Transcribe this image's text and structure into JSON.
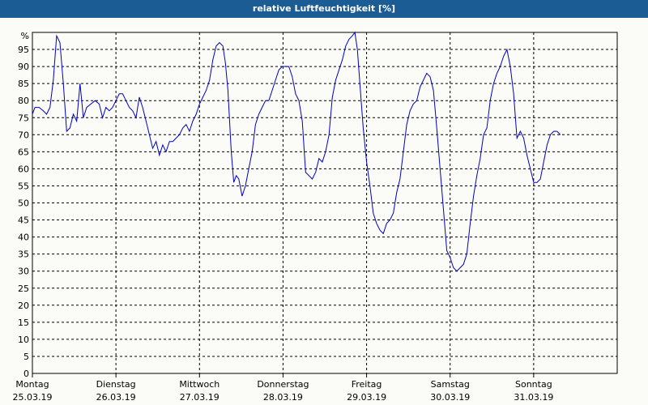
{
  "title": "relative Luftfeuchtigkeit [%]",
  "chart_data": {
    "type": "line",
    "title": "relative Luftfeuchtigkeit [%]",
    "unit_label": "%",
    "ylim": [
      0,
      100
    ],
    "y_ticks": [
      0,
      5,
      10,
      15,
      20,
      25,
      30,
      35,
      40,
      45,
      50,
      55,
      60,
      65,
      70,
      75,
      80,
      85,
      90,
      95
    ],
    "grid": true,
    "line_color": "#0000c8",
    "x_categories": [
      {
        "day": "Montag",
        "date": "25.03.19"
      },
      {
        "day": "Dienstag",
        "date": "26.03.19"
      },
      {
        "day": "Mittwoch",
        "date": "27.03.19"
      },
      {
        "day": "Donnerstag",
        "date": "28.03.19"
      },
      {
        "day": "Freitag",
        "date": "29.03.19"
      },
      {
        "day": "Samstag",
        "date": "30.03.19"
      },
      {
        "day": "Sonntag",
        "date": "31.03.19"
      }
    ],
    "series": [
      {
        "x_unit": "days since 25.03.19 00:00",
        "points": [
          [
            0.0,
            76
          ],
          [
            0.03,
            78
          ],
          [
            0.08,
            78
          ],
          [
            0.13,
            77
          ],
          [
            0.17,
            76
          ],
          [
            0.21,
            78
          ],
          [
            0.25,
            86
          ],
          [
            0.29,
            99
          ],
          [
            0.33,
            97
          ],
          [
            0.37,
            85
          ],
          [
            0.41,
            71
          ],
          [
            0.45,
            72
          ],
          [
            0.49,
            76
          ],
          [
            0.53,
            74
          ],
          [
            0.57,
            85
          ],
          [
            0.61,
            75
          ],
          [
            0.65,
            78
          ],
          [
            0.7,
            79
          ],
          [
            0.75,
            80
          ],
          [
            0.8,
            79
          ],
          [
            0.84,
            75
          ],
          [
            0.88,
            78
          ],
          [
            0.92,
            77
          ],
          [
            0.96,
            78
          ],
          [
            1.0,
            80
          ],
          [
            1.04,
            82
          ],
          [
            1.08,
            82
          ],
          [
            1.12,
            80
          ],
          [
            1.16,
            78
          ],
          [
            1.2,
            77
          ],
          [
            1.24,
            75
          ],
          [
            1.28,
            81
          ],
          [
            1.32,
            78
          ],
          [
            1.36,
            74
          ],
          [
            1.4,
            70
          ],
          [
            1.44,
            66
          ],
          [
            1.48,
            68
          ],
          [
            1.52,
            64
          ],
          [
            1.56,
            67
          ],
          [
            1.6,
            65
          ],
          [
            1.64,
            68
          ],
          [
            1.68,
            68
          ],
          [
            1.72,
            69
          ],
          [
            1.76,
            70
          ],
          [
            1.8,
            72
          ],
          [
            1.84,
            73
          ],
          [
            1.88,
            71
          ],
          [
            1.92,
            74
          ],
          [
            1.96,
            76
          ],
          [
            2.0,
            79
          ],
          [
            2.04,
            81
          ],
          [
            2.08,
            83
          ],
          [
            2.12,
            86
          ],
          [
            2.16,
            92
          ],
          [
            2.2,
            96
          ],
          [
            2.24,
            97
          ],
          [
            2.28,
            96
          ],
          [
            2.31,
            91
          ],
          [
            2.34,
            83
          ],
          [
            2.38,
            65
          ],
          [
            2.41,
            56
          ],
          [
            2.44,
            58
          ],
          [
            2.47,
            57
          ],
          [
            2.51,
            52
          ],
          [
            2.55,
            55
          ],
          [
            2.59,
            60
          ],
          [
            2.63,
            65
          ],
          [
            2.67,
            73
          ],
          [
            2.71,
            76
          ],
          [
            2.75,
            78
          ],
          [
            2.79,
            80
          ],
          [
            2.83,
            80
          ],
          [
            2.87,
            83
          ],
          [
            2.91,
            86
          ],
          [
            2.95,
            89
          ],
          [
            2.99,
            90
          ],
          [
            3.03,
            90
          ],
          [
            3.07,
            90
          ],
          [
            3.11,
            87
          ],
          [
            3.15,
            82
          ],
          [
            3.19,
            80
          ],
          [
            3.23,
            74
          ],
          [
            3.27,
            59
          ],
          [
            3.31,
            58
          ],
          [
            3.35,
            57
          ],
          [
            3.39,
            59
          ],
          [
            3.43,
            63
          ],
          [
            3.47,
            62
          ],
          [
            3.51,
            65
          ],
          [
            3.55,
            70
          ],
          [
            3.59,
            81
          ],
          [
            3.63,
            86
          ],
          [
            3.67,
            89
          ],
          [
            3.71,
            92
          ],
          [
            3.75,
            96
          ],
          [
            3.79,
            98
          ],
          [
            3.83,
            99
          ],
          [
            3.86,
            100
          ],
          [
            3.89,
            95
          ],
          [
            3.92,
            85
          ],
          [
            3.96,
            72
          ],
          [
            4.0,
            62
          ],
          [
            4.04,
            55
          ],
          [
            4.08,
            47
          ],
          [
            4.12,
            44
          ],
          [
            4.16,
            42
          ],
          [
            4.2,
            41
          ],
          [
            4.24,
            44
          ],
          [
            4.28,
            45
          ],
          [
            4.32,
            47
          ],
          [
            4.36,
            53
          ],
          [
            4.4,
            57
          ],
          [
            4.44,
            65
          ],
          [
            4.48,
            73
          ],
          [
            4.52,
            77
          ],
          [
            4.56,
            79
          ],
          [
            4.6,
            80
          ],
          [
            4.64,
            84
          ],
          [
            4.68,
            86
          ],
          [
            4.72,
            88
          ],
          [
            4.76,
            87
          ],
          [
            4.8,
            83
          ],
          [
            4.84,
            72
          ],
          [
            4.88,
            60
          ],
          [
            4.92,
            48
          ],
          [
            4.96,
            36
          ],
          [
            5.0,
            34
          ],
          [
            5.04,
            31
          ],
          [
            5.08,
            30
          ],
          [
            5.12,
            31
          ],
          [
            5.16,
            32
          ],
          [
            5.2,
            35
          ],
          [
            5.24,
            44
          ],
          [
            5.28,
            52
          ],
          [
            5.32,
            58
          ],
          [
            5.36,
            63
          ],
          [
            5.4,
            70
          ],
          [
            5.44,
            72
          ],
          [
            5.48,
            80
          ],
          [
            5.52,
            85
          ],
          [
            5.56,
            88
          ],
          [
            5.6,
            90
          ],
          [
            5.64,
            93
          ],
          [
            5.68,
            95
          ],
          [
            5.72,
            90
          ],
          [
            5.76,
            82
          ],
          [
            5.8,
            69
          ],
          [
            5.84,
            71
          ],
          [
            5.88,
            69
          ],
          [
            5.92,
            64
          ],
          [
            5.96,
            60
          ],
          [
            6.0,
            56
          ],
          [
            6.04,
            56
          ],
          [
            6.08,
            57
          ],
          [
            6.12,
            62
          ],
          [
            6.16,
            67
          ],
          [
            6.2,
            70
          ],
          [
            6.24,
            71
          ],
          [
            6.28,
            71
          ],
          [
            6.32,
            70
          ]
        ]
      }
    ]
  }
}
